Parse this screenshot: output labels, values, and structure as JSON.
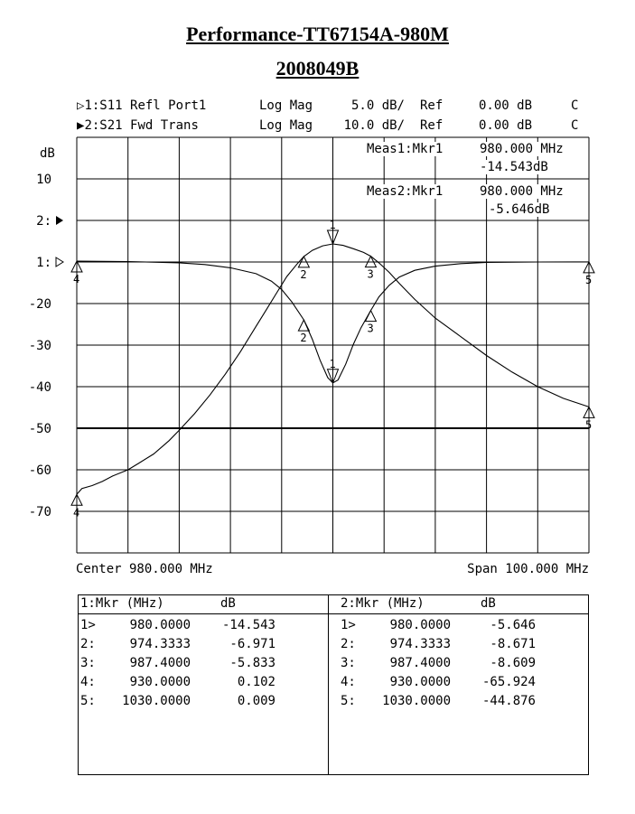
{
  "title": "Performance-TT67154A-980M",
  "subtitle": "2008049B",
  "traces": [
    {
      "label": "1:S11 Refl Port1",
      "format": "Log Mag",
      "scale": "5.0 dB/",
      "ref": "Ref",
      "ref_value": "0.00 dB",
      "flag": "C"
    },
    {
      "label": "2:S21 Fwd Trans",
      "format": "Log Mag",
      "scale": "10.0 dB/",
      "ref": "Ref",
      "ref_value": "0.00 dB",
      "flag": "C"
    }
  ],
  "y_unit_label": "dB",
  "y_tick_labels": [
    "10",
    "2:",
    "1:",
    "-20",
    "-30",
    "-40",
    "-50",
    "-60",
    "-70"
  ],
  "meas": [
    {
      "label": "Meas1:Mkr1",
      "freq": "980.000 MHz",
      "value": "-14.543dB"
    },
    {
      "label": "Meas2:Mkr1",
      "freq": "980.000 MHz",
      "value": "-5.646dB"
    }
  ],
  "center_label": "Center 980.000 MHz",
  "span_label": "Span 100.000 MHz",
  "table": {
    "left_header": [
      "1:Mkr (MHz)",
      "dB"
    ],
    "right_header": [
      "2:Mkr (MHz)",
      "dB"
    ],
    "left_rows": [
      {
        "id": "1>",
        "freq": "980.0000",
        "val": "-14.543"
      },
      {
        "id": "2:",
        "freq": "974.3333",
        "val": "-6.971"
      },
      {
        "id": "3:",
        "freq": "987.4000",
        "val": "-5.833"
      },
      {
        "id": "4:",
        "freq": "930.0000",
        "val": "0.102"
      },
      {
        "id": "5:",
        "freq": "1030.0000",
        "val": "0.009"
      }
    ],
    "right_rows": [
      {
        "id": "1>",
        "freq": "980.0000",
        "val": "-5.646"
      },
      {
        "id": "2:",
        "freq": "974.3333",
        "val": "-8.671"
      },
      {
        "id": "3:",
        "freq": "987.4000",
        "val": "-8.609"
      },
      {
        "id": "4:",
        "freq": "930.0000",
        "val": "-65.924"
      },
      {
        "id": "5:",
        "freq": "1030.0000",
        "val": "-44.876"
      }
    ]
  },
  "chart_data": {
    "type": "line",
    "x_unit": "MHz",
    "xlim": [
      930,
      1030
    ],
    "grid": true,
    "series": [
      {
        "name": "S11 Refl Port1",
        "scale_db_per_div": 5,
        "points": [
          [
            930,
            0.1
          ],
          [
            940,
            0.05
          ],
          [
            950,
            -0.1
          ],
          [
            955,
            -0.3
          ],
          [
            960,
            -0.7
          ],
          [
            965,
            -1.4
          ],
          [
            968,
            -2.3
          ],
          [
            970,
            -3.3
          ],
          [
            972,
            -4.8
          ],
          [
            974.33,
            -6.97
          ],
          [
            976,
            -9.3
          ],
          [
            977.5,
            -11.8
          ],
          [
            979,
            -13.9
          ],
          [
            980,
            -14.54
          ],
          [
            981,
            -14.2
          ],
          [
            982.5,
            -12.3
          ],
          [
            984,
            -9.9
          ],
          [
            985.5,
            -7.9
          ],
          [
            987.4,
            -5.83
          ],
          [
            989,
            -4.2
          ],
          [
            991,
            -2.8
          ],
          [
            993,
            -1.8
          ],
          [
            996,
            -1.0
          ],
          [
            1000,
            -0.5
          ],
          [
            1005,
            -0.2
          ],
          [
            1010,
            -0.05
          ],
          [
            1020,
            0.0
          ],
          [
            1030,
            0.01
          ]
        ],
        "markers": [
          {
            "n": "1",
            "x": 980.0,
            "y": -14.543
          },
          {
            "n": "2",
            "x": 974.3333,
            "y": -6.971
          },
          {
            "n": "3",
            "x": 987.4,
            "y": -5.833
          },
          {
            "n": "4",
            "x": 930.0,
            "y": 0.102
          },
          {
            "n": "5",
            "x": 1030.0,
            "y": 0.009
          }
        ]
      },
      {
        "name": "S21 Fwd Trans",
        "scale_db_per_div": 10,
        "points": [
          [
            930,
            -65.9
          ],
          [
            931,
            -64.5
          ],
          [
            933,
            -63.8
          ],
          [
            935,
            -62.8
          ],
          [
            937,
            -61.5
          ],
          [
            940,
            -60.0
          ],
          [
            942,
            -58.5
          ],
          [
            945,
            -56.2
          ],
          [
            948,
            -53.0
          ],
          [
            950,
            -50.5
          ],
          [
            953,
            -46.5
          ],
          [
            956,
            -42.0
          ],
          [
            959,
            -37.0
          ],
          [
            962,
            -31.5
          ],
          [
            965,
            -25.5
          ],
          [
            967,
            -21.5
          ],
          [
            969,
            -17.5
          ],
          [
            971,
            -13.5
          ],
          [
            973,
            -10.5
          ],
          [
            974.33,
            -8.67
          ],
          [
            976,
            -7.2
          ],
          [
            978,
            -6.1
          ],
          [
            980,
            -5.65
          ],
          [
            982,
            -6.0
          ],
          [
            984,
            -6.8
          ],
          [
            986,
            -7.7
          ],
          [
            987.4,
            -8.61
          ],
          [
            989,
            -10.2
          ],
          [
            991,
            -12.5
          ],
          [
            993,
            -15.2
          ],
          [
            996,
            -19.0
          ],
          [
            1000,
            -23.5
          ],
          [
            1005,
            -28.0
          ],
          [
            1010,
            -32.5
          ],
          [
            1015,
            -36.5
          ],
          [
            1020,
            -40.0
          ],
          [
            1025,
            -42.8
          ],
          [
            1030,
            -44.88
          ]
        ],
        "markers": [
          {
            "n": "1",
            "x": 980.0,
            "y": -5.646
          },
          {
            "n": "2",
            "x": 974.3333,
            "y": -8.671
          },
          {
            "n": "3",
            "x": 987.4,
            "y": -8.609
          },
          {
            "n": "4",
            "x": 930.0,
            "y": -65.924
          },
          {
            "n": "5",
            "x": 1030.0,
            "y": -44.876
          }
        ]
      }
    ]
  }
}
